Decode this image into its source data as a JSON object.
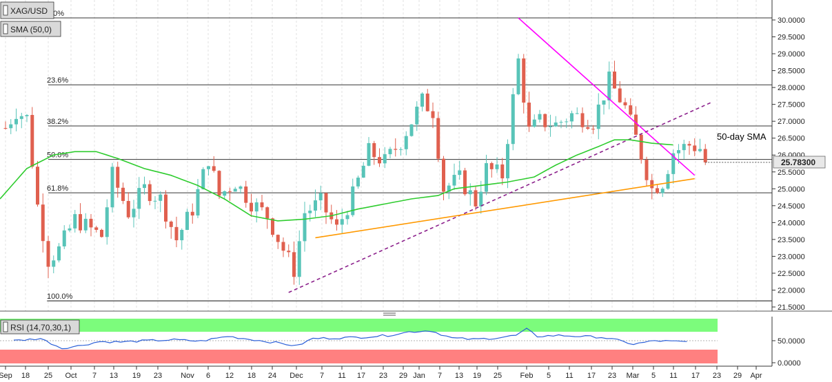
{
  "header": {
    "symbol": "XAG/USD",
    "indicator": "SMA (50,0)",
    "rsi_label": "RSI (14,70,30,1)"
  },
  "price_tag": "25.78300",
  "annotation": "50-day SMA",
  "colors": {
    "bull": "#58c4b8",
    "bear": "#e0604f",
    "sma": "#2ecc2e",
    "resistance": "#ff00ff",
    "channel": "#8b1f8b",
    "support": "#ff9900",
    "rsi_line": "#2b5fd8",
    "rsi_overbought": "#7cfc7c",
    "rsi_oversold": "#ff8080"
  },
  "chart_data": {
    "type": "candlestick",
    "y_ticks": [
      "30.0000",
      "29.5000",
      "29.0000",
      "28.5000",
      "28.0000",
      "27.5000",
      "27.0000",
      "26.5000",
      "26.0000",
      "25.5000",
      "25.0000",
      "24.5000",
      "24.0000",
      "23.5000",
      "23.0000",
      "22.5000",
      "22.0000",
      "21.5000"
    ],
    "y_tick_values": [
      30.0,
      29.5,
      29.0,
      28.5,
      28.0,
      27.5,
      27.0,
      26.5,
      26.0,
      25.5,
      25.0,
      24.5,
      24.0,
      23.5,
      23.0,
      22.5,
      22.0,
      21.5
    ],
    "ylim": [
      21.45,
      30.4
    ],
    "x_ticks": [
      "Sep",
      "18",
      "25",
      "Oct",
      "7",
      "13",
      "19",
      "23",
      "Nov",
      "6",
      "12",
      "18",
      "24",
      "Dec",
      "7",
      "11",
      "17",
      "23",
      "29",
      "Jan",
      "7",
      "13",
      "19",
      "25",
      "Feb",
      "5",
      "11",
      "17",
      "23",
      "Mar",
      "5",
      "11",
      "17",
      "23",
      "29",
      "Apr"
    ],
    "fib_levels": [
      {
        "label": "0.0%",
        "value": 30.06
      },
      {
        "label": "23.6%",
        "value": 28.08
      },
      {
        "label": "38.2%",
        "value": 26.86
      },
      {
        "label": "50.0%",
        "value": 25.87
      },
      {
        "label": "61.8%",
        "value": 24.88
      },
      {
        "label": "100.0%",
        "value": 21.68
      }
    ],
    "rsi_ticks": [
      "50.0000",
      "0.0000"
    ],
    "rsi_tick_values": [
      50,
      0
    ],
    "rsi_bands": [
      30,
      70
    ],
    "last_price": 25.783,
    "sma_anchors": [
      [
        0,
        24.7
      ],
      [
        5,
        25.6
      ],
      [
        10,
        26.0
      ],
      [
        14,
        26.1
      ],
      [
        18,
        26.1
      ],
      [
        22,
        25.9
      ],
      [
        27,
        25.6
      ],
      [
        32,
        25.4
      ],
      [
        37,
        25.1
      ],
      [
        42,
        24.7
      ],
      [
        47,
        24.2
      ],
      [
        52,
        24.05
      ],
      [
        57,
        24.1
      ],
      [
        62,
        24.2
      ],
      [
        67,
        24.4
      ],
      [
        72,
        24.55
      ],
      [
        77,
        24.7
      ],
      [
        82,
        24.8
      ],
      [
        85,
        25.0
      ],
      [
        90,
        25.1
      ],
      [
        95,
        25.2
      ],
      [
        100,
        25.35
      ],
      [
        104,
        25.7
      ],
      [
        108,
        26.0
      ],
      [
        112,
        26.25
      ],
      [
        115,
        26.45
      ],
      [
        118,
        26.45
      ],
      [
        122,
        26.35
      ],
      [
        126,
        26.3
      ]
    ],
    "rsi_anchors": [
      [
        0,
        50
      ],
      [
        5,
        55
      ],
      [
        9,
        33
      ],
      [
        12,
        38
      ],
      [
        16,
        48
      ],
      [
        20,
        47
      ],
      [
        25,
        50
      ],
      [
        30,
        52
      ],
      [
        35,
        49
      ],
      [
        40,
        60
      ],
      [
        45,
        52
      ],
      [
        50,
        44
      ],
      [
        53,
        38
      ],
      [
        56,
        55
      ],
      [
        60,
        56
      ],
      [
        65,
        58
      ],
      [
        70,
        62
      ],
      [
        74,
        70
      ],
      [
        78,
        73
      ],
      [
        82,
        56
      ],
      [
        86,
        53
      ],
      [
        90,
        56
      ],
      [
        94,
        62
      ],
      [
        96,
        76
      ],
      [
        98,
        60
      ],
      [
        102,
        62
      ],
      [
        106,
        60
      ],
      [
        110,
        58
      ],
      [
        113,
        51
      ],
      [
        116,
        42
      ],
      [
        120,
        50
      ],
      [
        124,
        48
      ],
      [
        126,
        47
      ]
    ],
    "trendlines": {
      "resistance": {
        "from": [
          96,
          30.06
        ],
        "to": [
          129,
          25.4
        ]
      },
      "channel": {
        "from": [
          53,
          21.93
        ],
        "to": [
          132,
          27.55
        ]
      },
      "support": {
        "from": [
          58,
          23.55
        ],
        "to": [
          129,
          25.3
        ]
      }
    }
  }
}
